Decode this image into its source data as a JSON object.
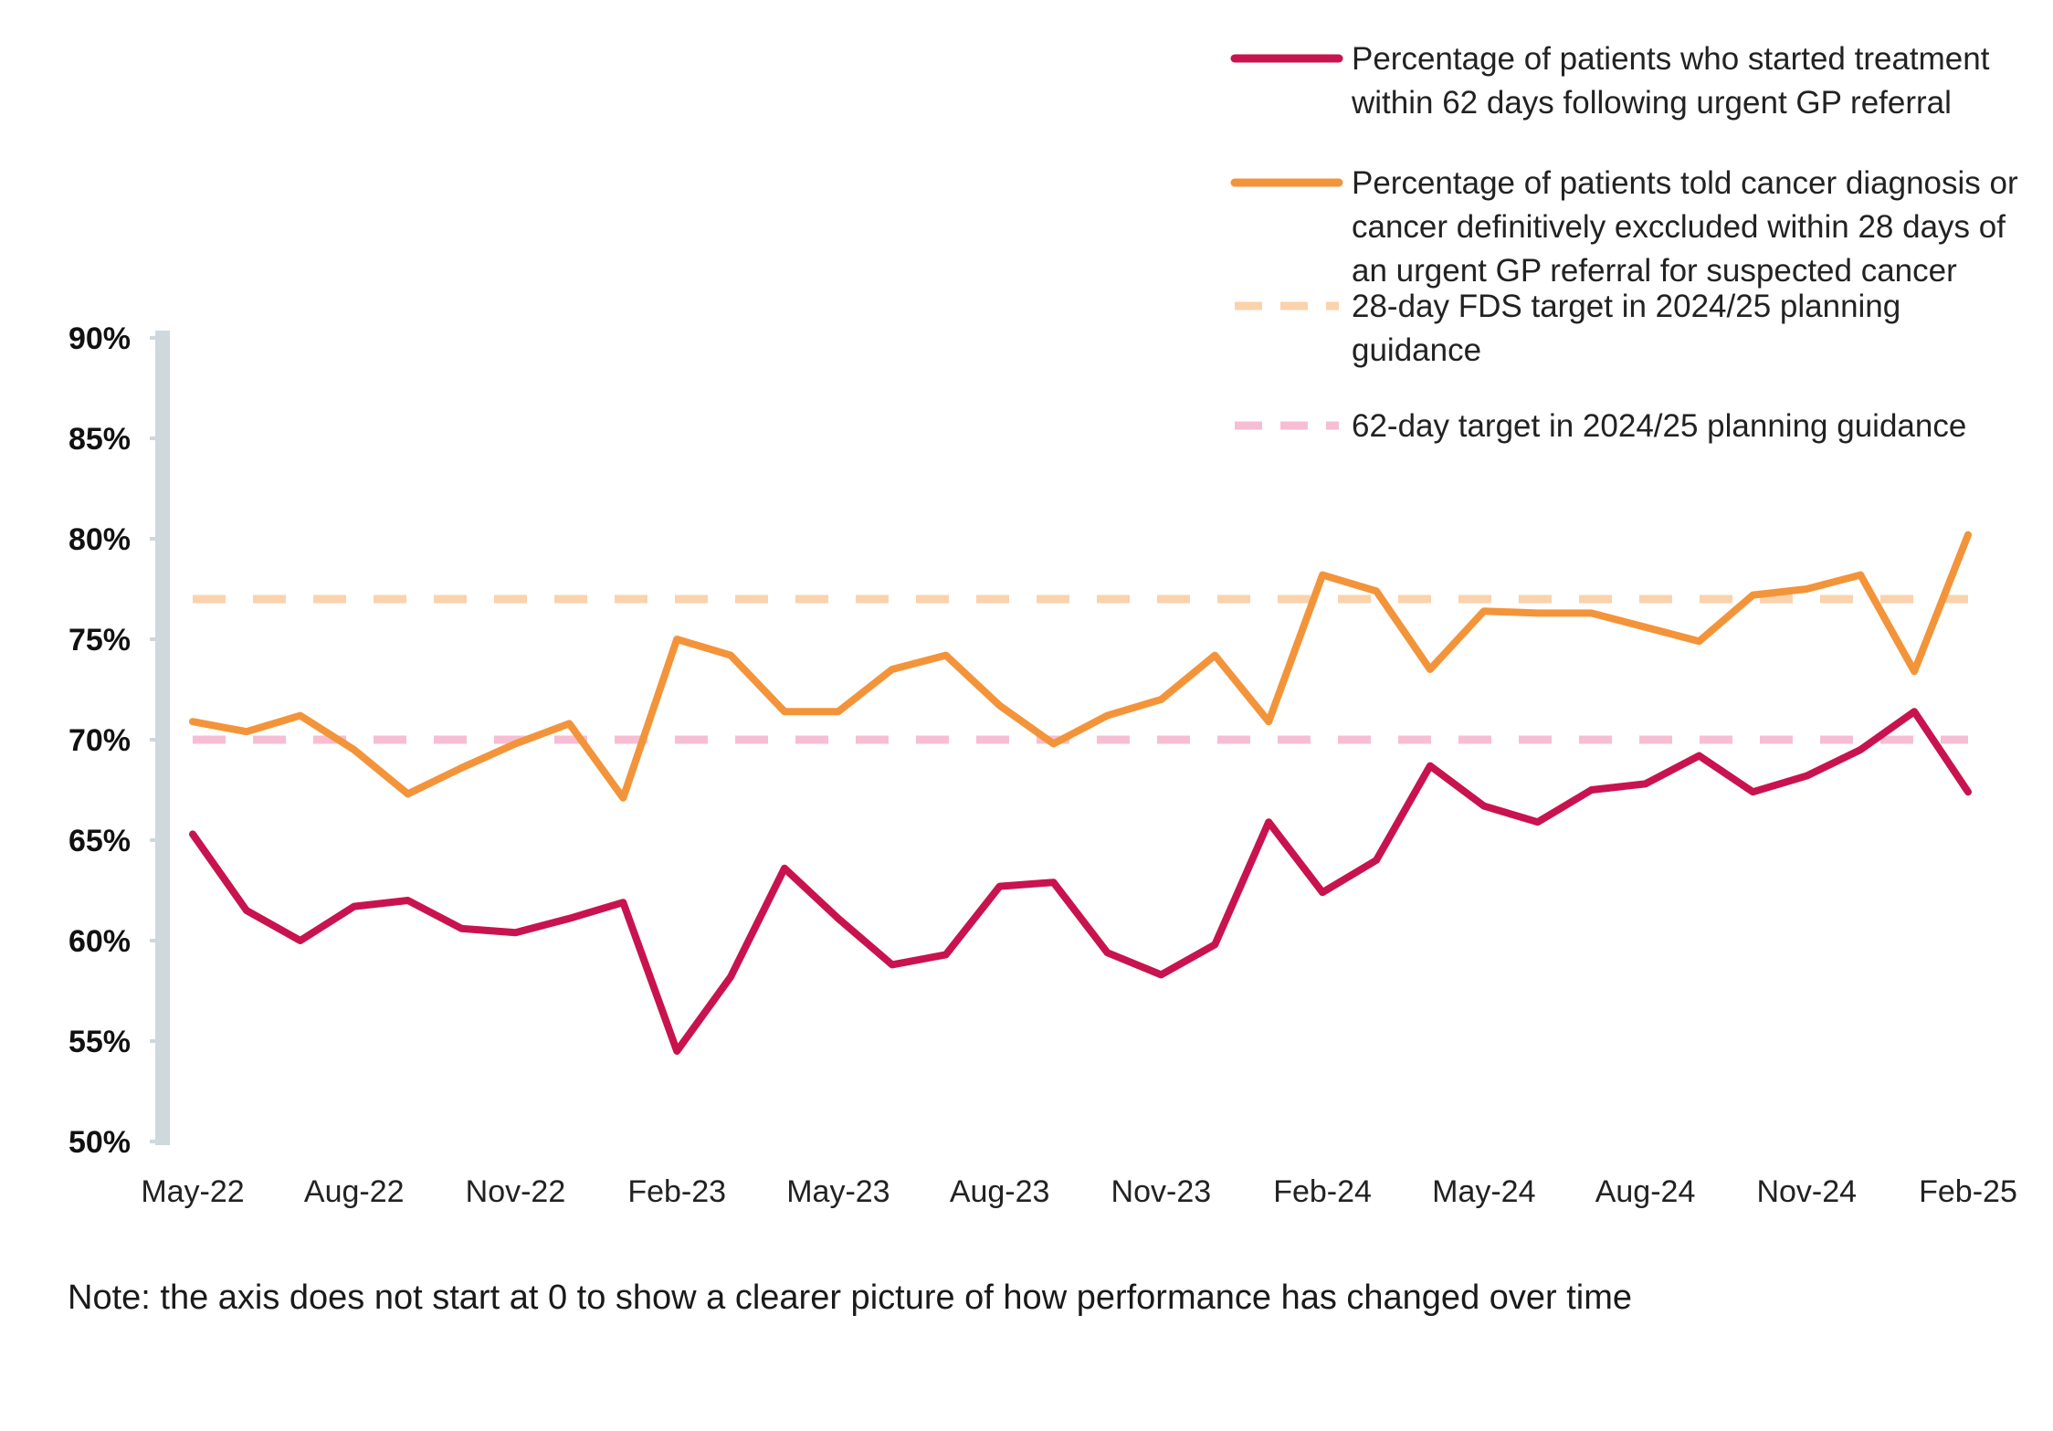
{
  "chart_data": {
    "type": "line",
    "categories": [
      "May-22",
      "Jun-22",
      "Jul-22",
      "Aug-22",
      "Sep-22",
      "Oct-22",
      "Nov-22",
      "Dec-22",
      "Jan-23",
      "Feb-23",
      "Mar-23",
      "Apr-23",
      "May-23",
      "Jun-23",
      "Jul-23",
      "Aug-23",
      "Sep-23",
      "Oct-23",
      "Nov-23",
      "Dec-23",
      "Jan-24",
      "Feb-24",
      "Mar-24",
      "Apr-24",
      "May-24",
      "Jun-24",
      "Jul-24",
      "Aug-24",
      "Sep-24",
      "Oct-24",
      "Nov-24",
      "Dec-24",
      "Jan-25",
      "Feb-25"
    ],
    "tick_labels": [
      "May-22",
      "Aug-22",
      "Nov-22",
      "Feb-23",
      "May-23",
      "Aug-23",
      "Nov-23",
      "Feb-24",
      "May-24",
      "Aug-24",
      "Nov-24",
      "Feb-25"
    ],
    "y_tick_labels": [
      "90%",
      "85%",
      "80%",
      "75%",
      "70%",
      "65%",
      "60%",
      "55%",
      "50%"
    ],
    "y_ticks": [
      90,
      85,
      80,
      75,
      70,
      65,
      60,
      55,
      50
    ],
    "ylim": [
      50,
      90
    ],
    "series": [
      {
        "name": "Percentage of patients who started treatment within 62 days following urgent GP referral",
        "legend_lines": [
          "Percentage of patients who started treatment",
          "within 62 days following urgent GP referral"
        ],
        "color": "#c8134f",
        "style": "solid",
        "values": [
          65.3,
          61.5,
          60.0,
          61.7,
          62.0,
          60.6,
          60.4,
          61.1,
          61.9,
          54.5,
          58.2,
          63.6,
          61.1,
          58.8,
          59.3,
          62.7,
          62.9,
          59.4,
          58.3,
          59.8,
          65.9,
          62.4,
          64.0,
          68.7,
          66.7,
          65.9,
          67.5,
          67.8,
          69.2,
          67.4,
          68.2,
          69.5,
          71.4,
          67.4
        ]
      },
      {
        "name": "Percentage of patients told cancer diagnosis or cancer definitively exccluded  within 28 days of an urgent GP referral for suspected cancer",
        "legend_lines": [
          "Percentage of patients told cancer diagnosis or",
          "cancer definitively exccluded  within 28 days of",
          "an urgent GP referral for suspected cancer"
        ],
        "color": "#f3943a",
        "style": "solid",
        "values": [
          70.9,
          70.4,
          71.2,
          69.5,
          67.3,
          68.6,
          69.8,
          70.8,
          67.1,
          75.0,
          74.2,
          71.4,
          71.4,
          73.5,
          74.2,
          71.7,
          69.8,
          71.2,
          72.0,
          74.2,
          70.9,
          78.2,
          77.4,
          73.5,
          76.4,
          76.3,
          76.3,
          75.6,
          74.9,
          77.2,
          77.5,
          78.2,
          73.4,
          80.2
        ]
      },
      {
        "name": "28-day FDS target in 2024/25 planning guidance",
        "legend_lines": [
          "28-day FDS target in 2024/25 planning",
          "guidance"
        ],
        "color": "#fbd2ab",
        "style": "dashed",
        "values": [
          77,
          77,
          77,
          77,
          77,
          77,
          77,
          77,
          77,
          77,
          77,
          77,
          77,
          77,
          77,
          77,
          77,
          77,
          77,
          77,
          77,
          77,
          77,
          77,
          77,
          77,
          77,
          77,
          77,
          77,
          77,
          77,
          77,
          77
        ]
      },
      {
        "name": "62-day target in 2024/25 planning guidance",
        "legend_lines": [
          "62-day target in 2024/25 planning guidance"
        ],
        "color": "#f7bed3",
        "style": "dashed",
        "values": [
          70,
          70,
          70,
          70,
          70,
          70,
          70,
          70,
          70,
          70,
          70,
          70,
          70,
          70,
          70,
          70,
          70,
          70,
          70,
          70,
          70,
          70,
          70,
          70,
          70,
          70,
          70,
          70,
          70,
          70,
          70,
          70,
          70,
          70
        ]
      }
    ],
    "axis_color": "#cfd8dc",
    "grid": false,
    "legend_position": "top-right"
  },
  "note": "Note: the axis does not start at 0 to show a clearer picture of how performance has changed over time"
}
